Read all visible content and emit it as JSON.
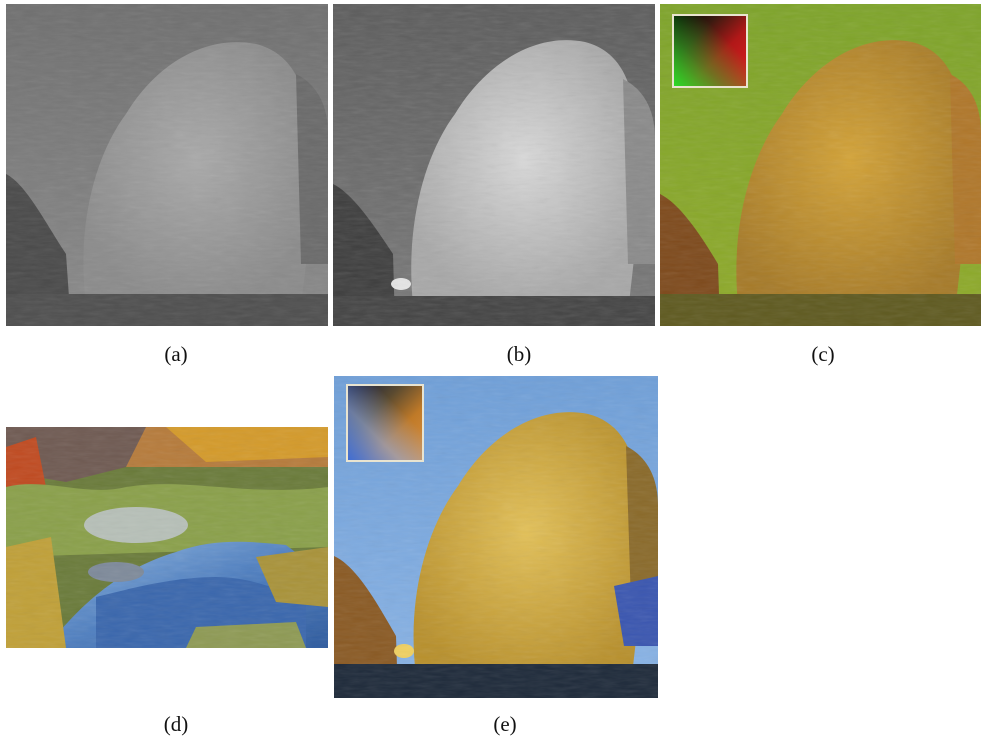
{
  "figure": {
    "panels": [
      {
        "id": "a",
        "caption": "(a)",
        "content": "grayscale weeping willow over pond"
      },
      {
        "id": "b",
        "caption": "(b)",
        "content": "enhanced grayscale weeping willow"
      },
      {
        "id": "c",
        "caption": "(c)",
        "content": "yellow-green tinted willow with red-green color map inset"
      },
      {
        "id": "d",
        "caption": "(d)",
        "content": "autumn stream with rocks and foliage"
      },
      {
        "id": "e",
        "caption": "(e)",
        "content": "colorized golden willow with blue sky and color map inset"
      }
    ]
  }
}
